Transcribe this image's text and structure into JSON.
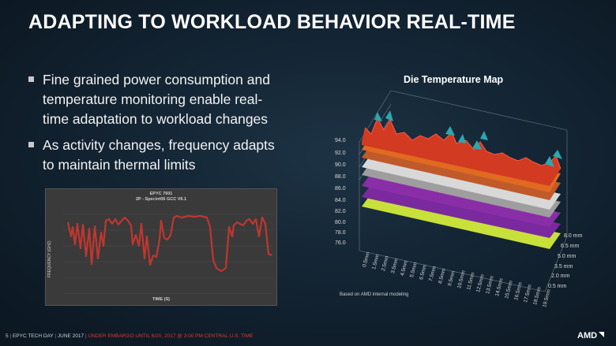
{
  "slide": {
    "title": "ADAPTING TO WORKLOAD BEHAVIOR REAL-TIME",
    "bullets": [
      {
        "lines": [
          "Fine grained power consumption and",
          "temperature monitoring enable real-",
          "time adaptation to workload changes"
        ]
      },
      {
        "lines": [
          "As activity changes, frequency adapts",
          "to maintain thermal limits"
        ]
      }
    ]
  },
  "freq_chart": {
    "title": "EPYC 7601",
    "subtitle": "2P - Specint06 GCC V6.1",
    "ylabel": "FREQUENCY (GHZ)",
    "xlabel": "TIME (S)",
    "line_color": "#c0362f"
  },
  "temp_map": {
    "title": "Die Temperature Map",
    "z_ticks": [
      "94.0",
      "92.0",
      "90.0",
      "88.0",
      "86.0",
      "84.0",
      "82.0",
      "80.0",
      "78.0",
      "76.0"
    ],
    "y_ticks": [
      "8.0 mm",
      "6.5 mm",
      "5.0 mm",
      "3.5 mm",
      "2.0 mm",
      "0.5 mm"
    ],
    "x_ticks": [
      "0.5mm",
      "1.5mm",
      "2.5mm",
      "3.5mm",
      "4.5mm",
      "5.5mm",
      "6.5mm",
      "7.5mm",
      "8.5mm",
      "9.5mm",
      "10.5mm",
      "11.5mm",
      "12.5mm",
      "13.5mm",
      "14.5mm",
      "15.5mm",
      "16.5mm",
      "17.5mm",
      "18.5mm",
      "19.5mm"
    ],
    "note": "Based on AMD internal modeling",
    "band_colors": [
      "#c8e03a",
      "#7a2a9e",
      "#8a2ea8",
      "#9e9e9e",
      "#d8d8d8",
      "#c05a2a",
      "#e06a20",
      "#d23a22",
      "#e02a24"
    ]
  },
  "footer": {
    "page": "5",
    "event": "EPYC TECH DAY",
    "date": "JUNE 2017",
    "embargo": "UNDER EMBARGO UNTIL 6/20, 2017 @ 3:00 PM CENTRAL U.S. TIME",
    "logo": "AMD"
  }
}
